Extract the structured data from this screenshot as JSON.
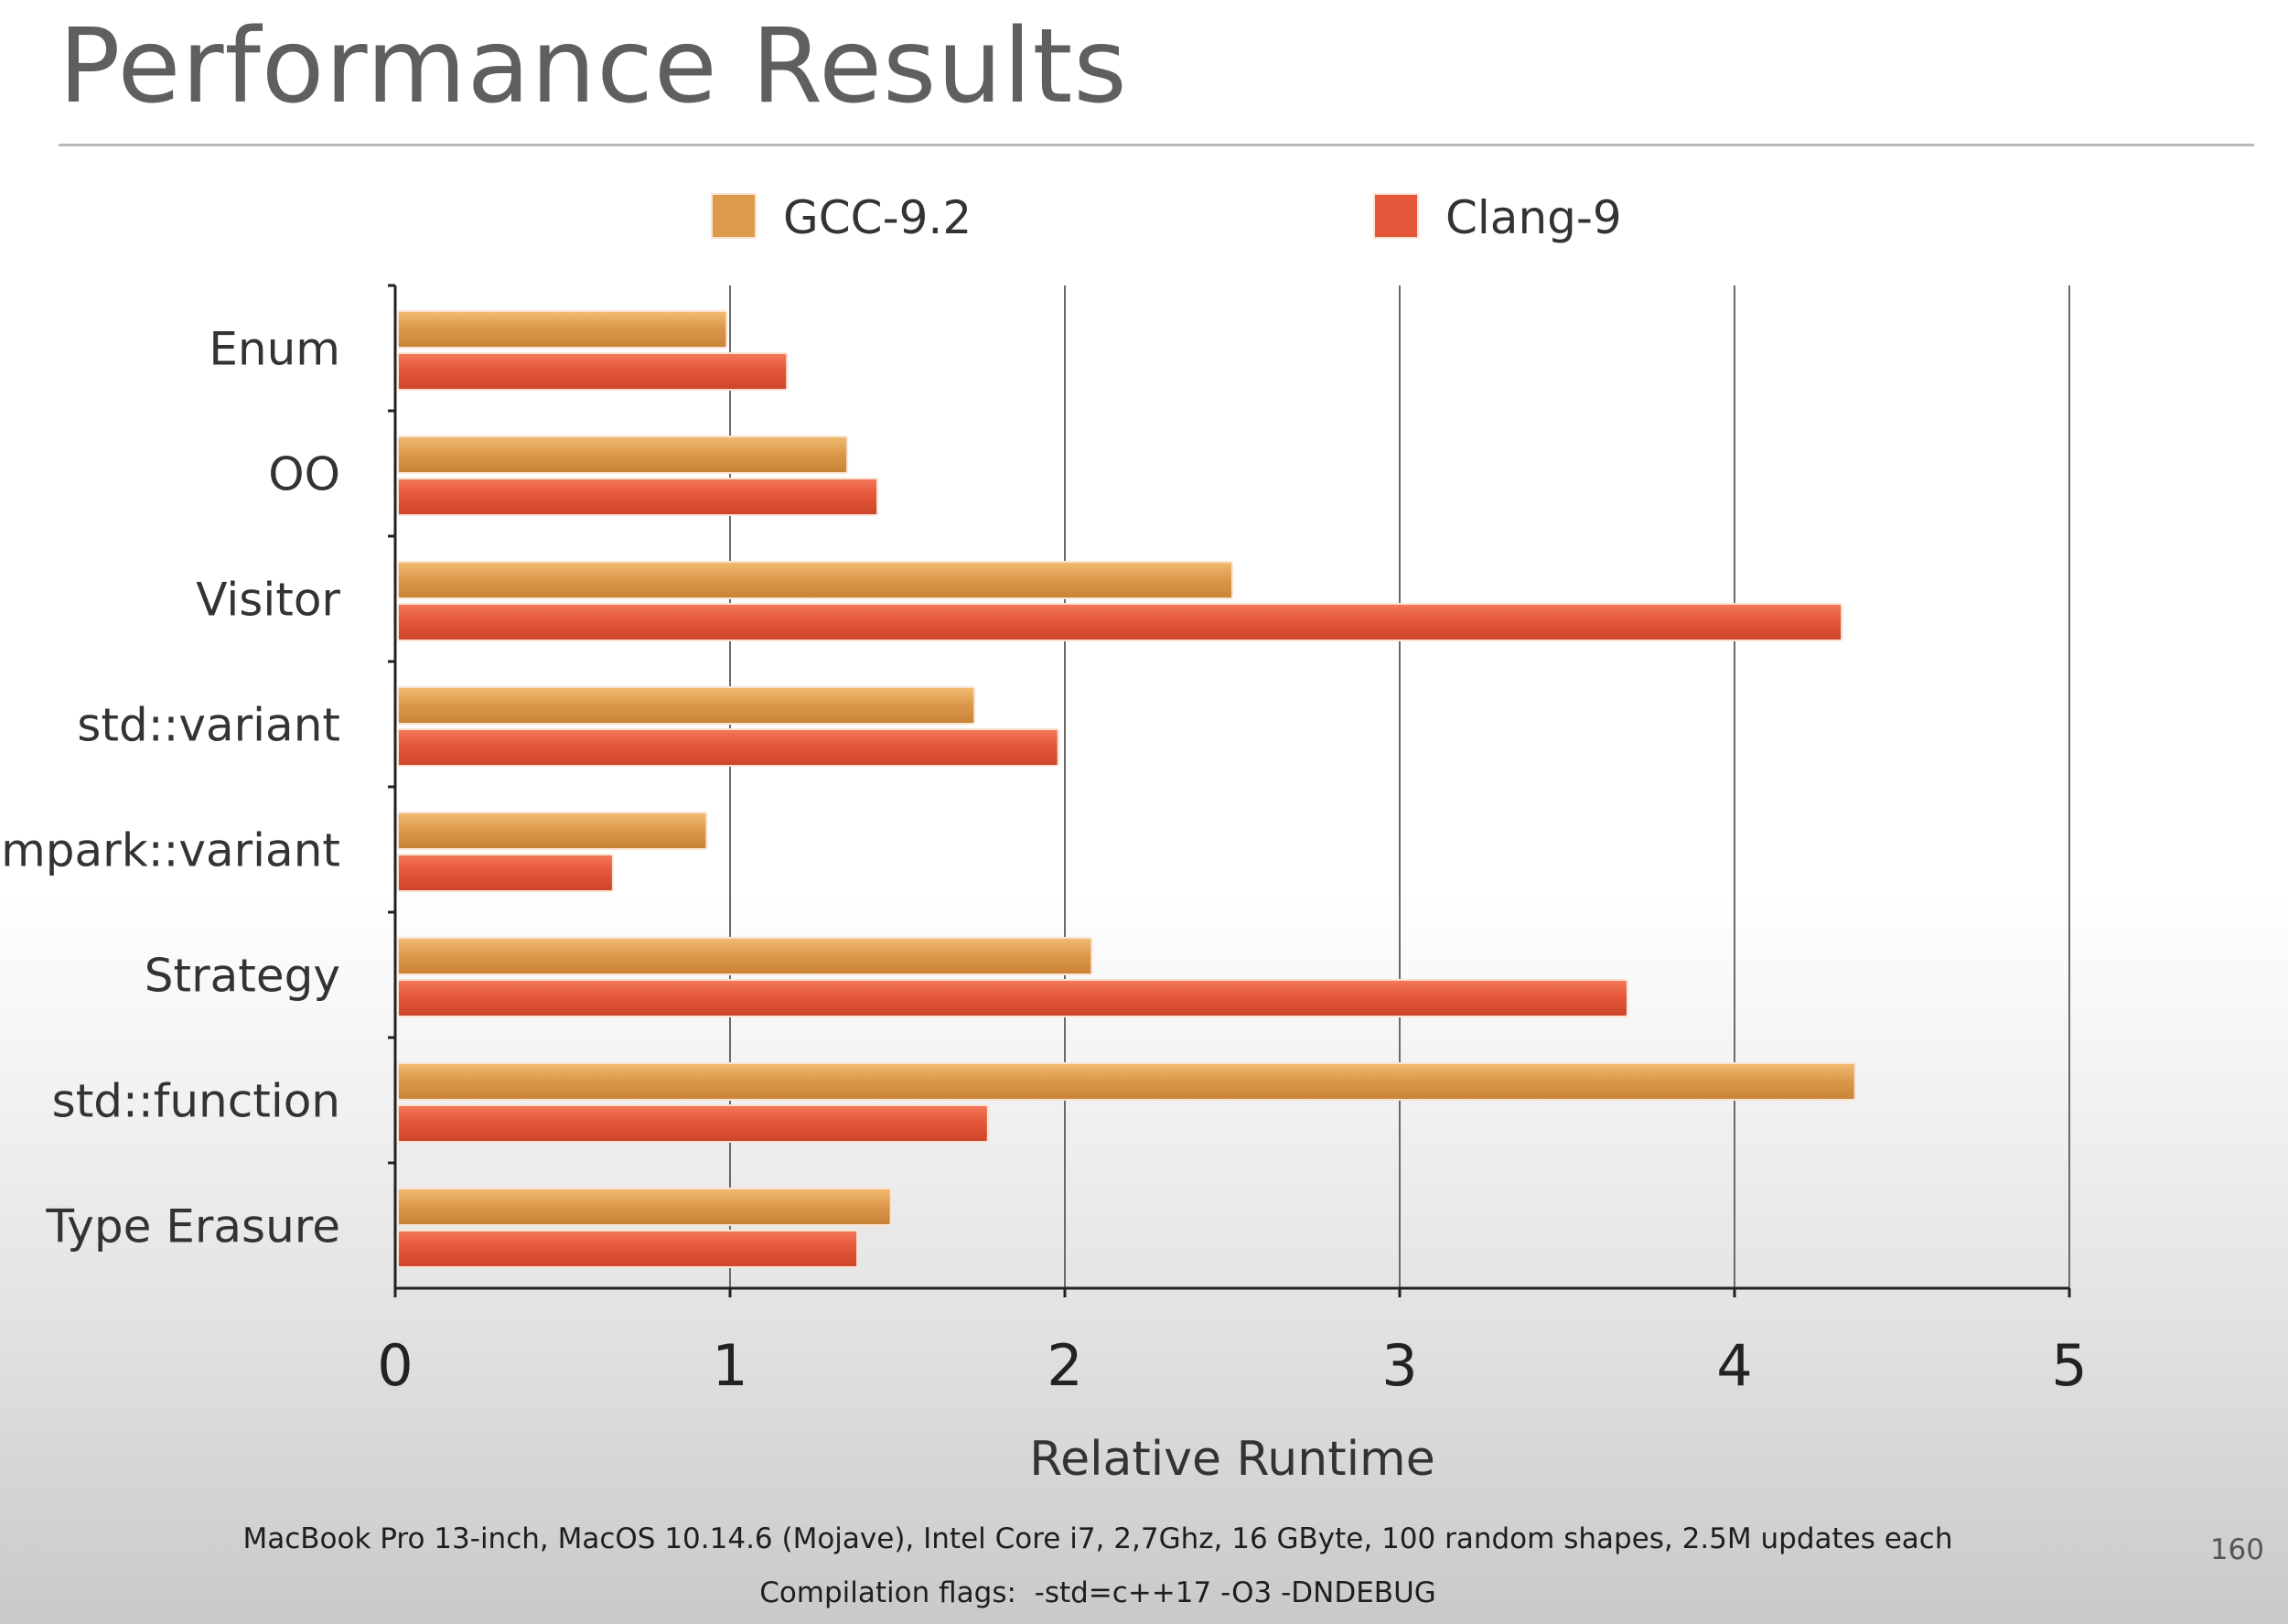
{
  "slide": {
    "title": "Performance Results",
    "footnote_line1": "MacBook Pro 13-inch, MacOS 10.14.6 (Mojave), Intel Core i7, 2,7Ghz, 16 GByte, 100 random shapes, 2.5M updates each",
    "footnote_line2": "Compilation flags:  -std=c++17 -O3 -DNDEBUG",
    "page_number": "160"
  },
  "chart_data": {
    "type": "bar",
    "orientation": "horizontal",
    "title": "",
    "xlabel": "Relative Runtime",
    "ylabel": "",
    "xlim": [
      0,
      5
    ],
    "ticks": [
      0,
      1,
      2,
      3,
      4,
      5
    ],
    "grid": "vertical",
    "legend_position": "top",
    "categories": [
      "Enum",
      "OO",
      "Visitor",
      "std::variant",
      "mpark::variant",
      "Strategy",
      "std::function",
      "Type Erasure"
    ],
    "series": [
      {
        "name": "GCC-9.2",
        "color": "#dd9a4c",
        "values": [
          0.99,
          1.35,
          2.5,
          1.73,
          0.93,
          2.08,
          4.36,
          1.48
        ]
      },
      {
        "name": "Clang-9",
        "color": "#e5573a",
        "values": [
          1.17,
          1.44,
          4.32,
          1.98,
          0.65,
          3.68,
          1.77,
          1.38
        ]
      }
    ]
  }
}
